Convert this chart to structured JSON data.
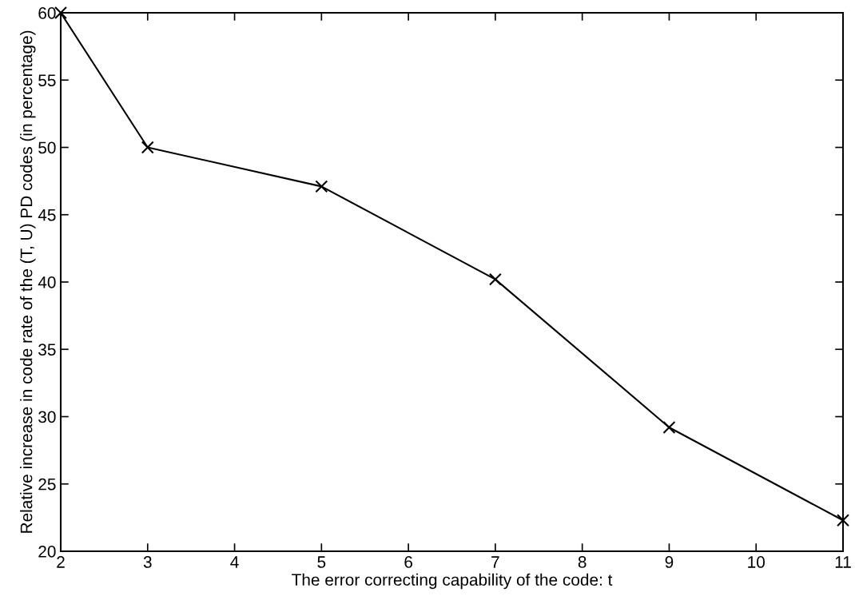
{
  "chart_data": {
    "type": "line",
    "xlabel": "The error correcting capability of the code: t",
    "ylabel": "Relative increase in code rate of the (T, U) PD codes (in percentage)",
    "x": [
      2,
      3,
      5,
      7,
      9,
      11
    ],
    "series": [
      {
        "color": "#000000",
        "values": [
          60,
          50,
          47.1,
          40.2,
          29.2,
          22.3
        ]
      }
    ],
    "xlim": [
      2,
      11
    ],
    "ylim": [
      20,
      60
    ],
    "xticks": [
      2,
      3,
      4,
      5,
      6,
      7,
      8,
      9,
      10,
      11
    ],
    "yticks": [
      20,
      25,
      30,
      35,
      40,
      45,
      50,
      55,
      60
    ],
    "marker": "cross",
    "line_style": "solid"
  }
}
